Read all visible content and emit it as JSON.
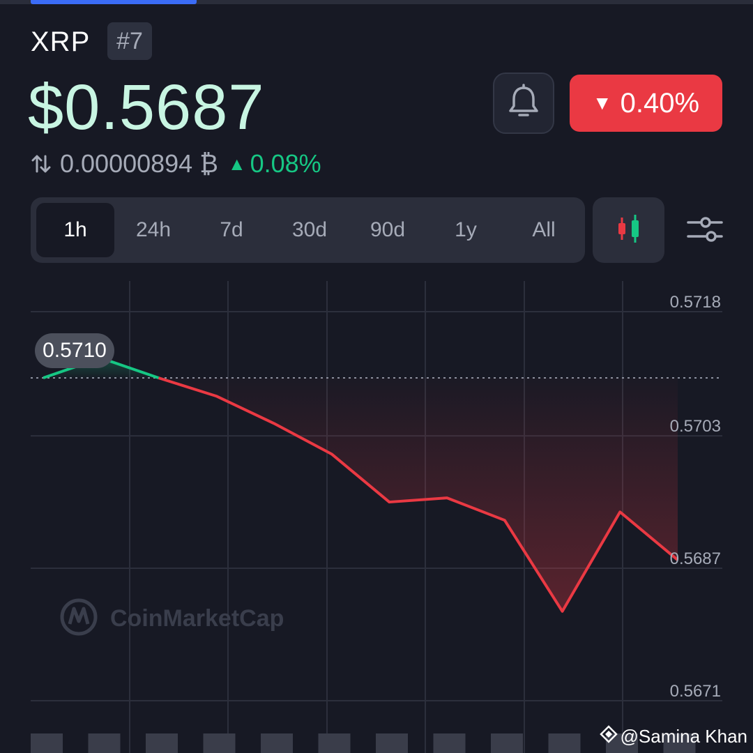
{
  "coin": {
    "name": "XRP",
    "rank": "#7",
    "price": "$0.5687",
    "change_24h": "0.40%",
    "change_direction": "down",
    "btc_price": "0.00000894 ₿",
    "btc_change": "0.08%",
    "btc_change_direction": "up"
  },
  "range_tabs": [
    "1h",
    "24h",
    "7d",
    "30d",
    "90d",
    "1y",
    "All"
  ],
  "active_range": "1h",
  "icons": {
    "bell": "bell-icon",
    "candlestick": "candlestick-icon",
    "filter": "sliders-icon",
    "swap": "swap-arrows-icon"
  },
  "colors": {
    "background": "#171924",
    "up": "#16c784",
    "down": "#ea3943",
    "price_text": "#c8f5e2"
  },
  "chart_data": {
    "type": "line",
    "y_tick_labels": [
      "0.5718",
      "0.5703",
      "0.5687",
      "0.5671"
    ],
    "y_ticks": [
      0.5718,
      0.5703,
      0.5687,
      0.5671
    ],
    "ylim": [
      0.5671,
      0.5718
    ],
    "baseline": 0.571,
    "start_label": "0.5710",
    "values": [
      0.571,
      0.57124,
      0.571,
      0.57078,
      0.57045,
      0.57008,
      0.5695,
      0.56955,
      0.56928,
      0.56818,
      0.56938,
      0.5688
    ],
    "volume_bars": 12,
    "grid": true,
    "watermark": "CoinMarketCap"
  },
  "credit": "@Samina Khan"
}
